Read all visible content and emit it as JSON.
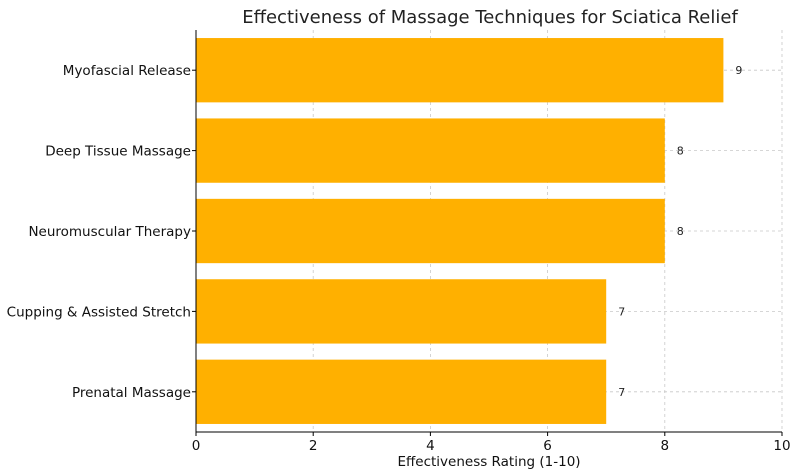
{
  "chart_data": {
    "type": "bar",
    "orientation": "horizontal",
    "title": "Effectiveness of Massage Techniques for Sciatica Relief",
    "xlabel": "Effectiveness Rating (1-10)",
    "ylabel": "",
    "categories": [
      "Myofascial Release",
      "Deep Tissue Massage",
      "Neuromuscular Therapy",
      "Cupping & Assisted Stretch",
      "Prenatal Massage"
    ],
    "values": [
      9,
      8,
      8,
      7,
      7
    ],
    "xlim": [
      0,
      10
    ],
    "xticks": [
      0,
      2,
      4,
      6,
      8,
      10
    ],
    "grid": true,
    "bar_color": "#FFB000",
    "data_labels": true
  }
}
